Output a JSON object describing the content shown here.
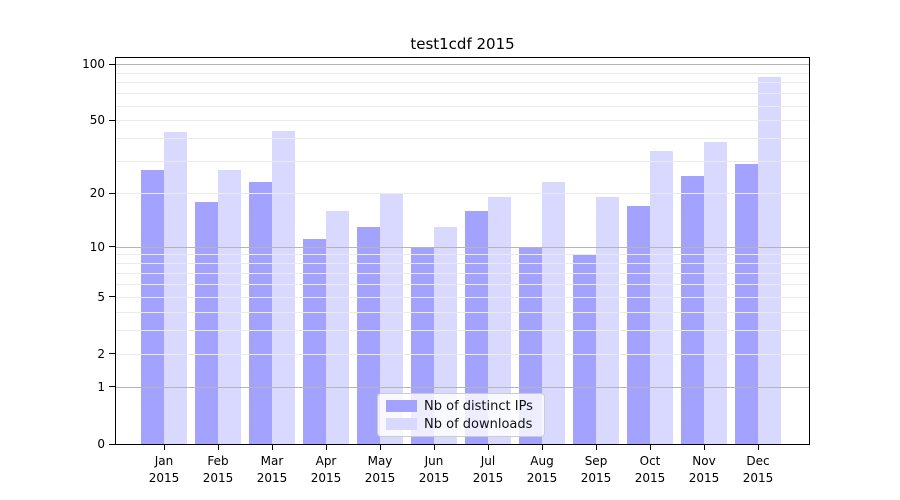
{
  "chart_data": {
    "type": "bar",
    "title": "test1cdf 2015",
    "categories": [
      "Jan 2015",
      "Feb 2015",
      "Mar 2015",
      "Apr 2015",
      "May 2015",
      "Jun 2015",
      "Jul 2015",
      "Aug 2015",
      "Sep 2015",
      "Oct 2015",
      "Nov 2015",
      "Dec 2015"
    ],
    "months": [
      "Jan",
      "Feb",
      "Mar",
      "Apr",
      "May",
      "Jun",
      "Jul",
      "Aug",
      "Sep",
      "Oct",
      "Nov",
      "Dec"
    ],
    "year_label": "2015",
    "series": [
      {
        "name": "Nb of distinct IPs",
        "color": "rgba(102,102,255,0.6)",
        "legend_color": "#a3a3ff",
        "values": [
          27,
          18,
          23,
          11,
          13,
          10,
          16,
          10,
          9,
          17,
          25,
          29
        ]
      },
      {
        "name": "Nb of downloads",
        "color": "rgba(102,102,255,0.25)",
        "legend_color": "#d9d9ff",
        "values": [
          43,
          27,
          44,
          16,
          20,
          13,
          19,
          23,
          19,
          34,
          38,
          85
        ]
      }
    ],
    "y_axis": {
      "scale": "log1p",
      "tick_labels": [
        "0",
        "1",
        "2",
        "5",
        "10",
        "20",
        "50",
        "100"
      ],
      "tick_values": [
        0,
        1,
        2,
        5,
        10,
        20,
        50,
        100
      ],
      "range": [
        0,
        109
      ]
    },
    "gridlines": {
      "major_values": [
        1,
        10,
        100
      ],
      "minor_values": [
        2,
        3,
        4,
        5,
        6,
        7,
        8,
        9,
        20,
        30,
        40,
        50,
        60,
        70,
        80,
        90
      ],
      "major_color": "#b5b5b5",
      "minor_color": "#ebebeb"
    },
    "legend_position": "lower center",
    "grid": true
  }
}
